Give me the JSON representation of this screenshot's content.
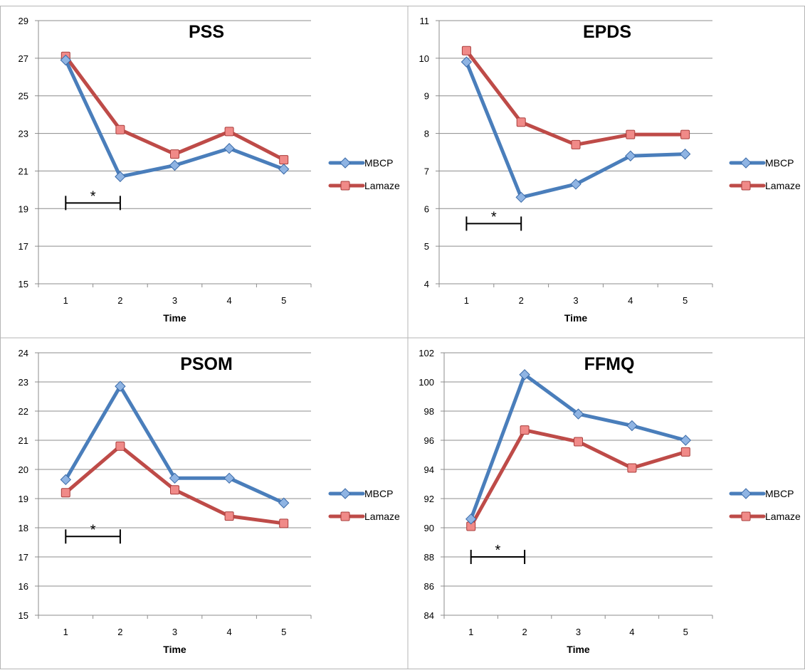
{
  "chart_data": [
    {
      "type": "line",
      "title": "PSS",
      "xlabel": "Time",
      "ylabel": "",
      "categories": [
        "1",
        "2",
        "3",
        "4",
        "5"
      ],
      "ylim": [
        15,
        29
      ],
      "yticks": [
        "15",
        "17",
        "19",
        "21",
        "23",
        "25",
        "27",
        "29"
      ],
      "grid": true,
      "legend_position": "right",
      "series": [
        {
          "name": "MBCP",
          "values": [
            26.9,
            20.7,
            21.3,
            22.2,
            21.1
          ],
          "color": "#4a7ebb",
          "marker": "diamond"
        },
        {
          "name": "Lamaze",
          "values": [
            27.1,
            23.2,
            21.9,
            23.1,
            21.6
          ],
          "color": "#be4b48",
          "marker": "square"
        }
      ],
      "significance": {
        "from": 1,
        "to": 2,
        "y": 19.3,
        "label": "*"
      }
    },
    {
      "type": "line",
      "title": "EPDS",
      "xlabel": "Time",
      "ylabel": "",
      "categories": [
        "1",
        "2",
        "3",
        "4",
        "5"
      ],
      "ylim": [
        4,
        11
      ],
      "yticks": [
        "4",
        "5",
        "6",
        "7",
        "8",
        "9",
        "10",
        "11"
      ],
      "grid": true,
      "legend_position": "right",
      "series": [
        {
          "name": "MBCP",
          "values": [
            9.9,
            6.3,
            6.65,
            7.4,
            7.45
          ],
          "color": "#4a7ebb",
          "marker": "diamond"
        },
        {
          "name": "Lamaze",
          "values": [
            10.2,
            8.3,
            7.7,
            7.97,
            7.97
          ],
          "color": "#be4b48",
          "marker": "square"
        }
      ],
      "significance": {
        "from": 1,
        "to": 2,
        "y": 5.6,
        "label": "*"
      }
    },
    {
      "type": "line",
      "title": "PSOM",
      "xlabel": "Time",
      "ylabel": "",
      "categories": [
        "1",
        "2",
        "3",
        "4",
        "5"
      ],
      "ylim": [
        15,
        24
      ],
      "yticks": [
        "15",
        "16",
        "17",
        "18",
        "19",
        "20",
        "21",
        "22",
        "23",
        "24"
      ],
      "grid": true,
      "legend_position": "right",
      "series": [
        {
          "name": "MBCP",
          "values": [
            19.65,
            22.85,
            19.7,
            19.7,
            18.85
          ],
          "color": "#4a7ebb",
          "marker": "diamond"
        },
        {
          "name": "Lamaze",
          "values": [
            19.2,
            20.8,
            19.3,
            18.4,
            18.15
          ],
          "color": "#be4b48",
          "marker": "square"
        }
      ],
      "significance": {
        "from": 1,
        "to": 2,
        "y": 17.7,
        "label": "*"
      }
    },
    {
      "type": "line",
      "title": "FFMQ",
      "xlabel": "Time",
      "ylabel": "",
      "categories": [
        "1",
        "2",
        "3",
        "4",
        "5"
      ],
      "ylim": [
        84,
        102
      ],
      "yticks": [
        "84",
        "86",
        "88",
        "90",
        "92",
        "94",
        "96",
        "98",
        "100",
        "102"
      ],
      "grid": true,
      "legend_position": "right",
      "series": [
        {
          "name": "MBCP",
          "values": [
            90.6,
            100.5,
            97.8,
            97.0,
            96.0
          ],
          "color": "#4a7ebb",
          "marker": "diamond"
        },
        {
          "name": "Lamaze",
          "values": [
            90.1,
            96.7,
            95.9,
            94.1,
            95.2
          ],
          "color": "#be4b48",
          "marker": "square"
        }
      ],
      "significance": {
        "from": 1,
        "to": 2,
        "y": 88.0,
        "label": "*"
      }
    }
  ]
}
